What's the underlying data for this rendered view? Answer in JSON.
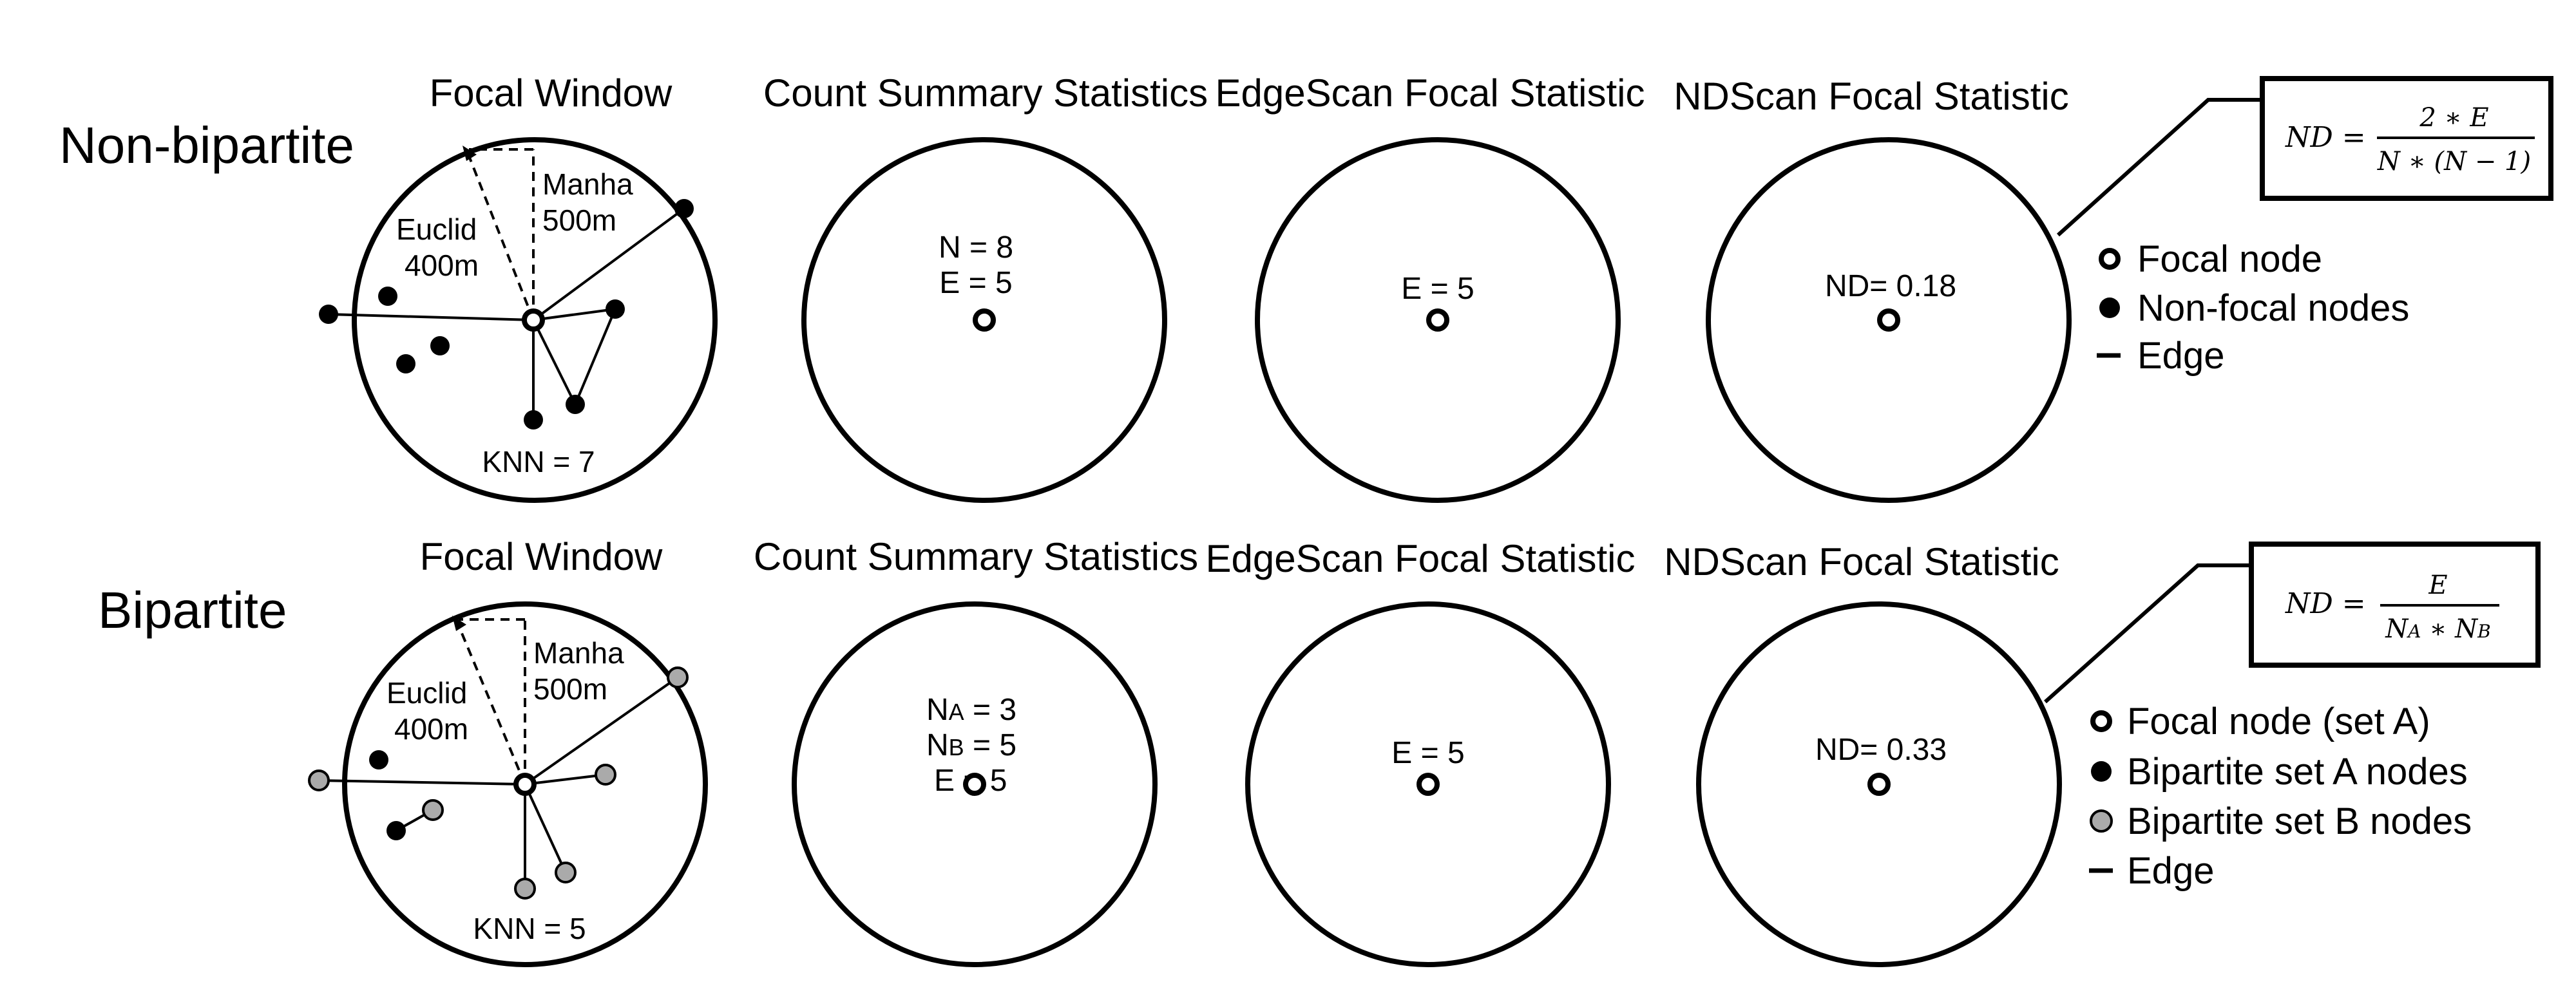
{
  "rows": {
    "nonbipartite": {
      "label": "Non-bipartite",
      "panel_titles": [
        "Focal Window",
        "Count Summary Statistics",
        "EdgeScan Focal Statistic",
        "NDScan Focal Statistic"
      ],
      "focal_window": {
        "manha": "Manha",
        "manha_dist": "500m",
        "euclid": "Euclid",
        "euclid_dist": "400m",
        "knn": "KNN = 7"
      },
      "count_lines": [
        "N = 8",
        "E = 5"
      ],
      "edgescan": "E = 5",
      "ndscan": "ND= 0.18",
      "formula": {
        "lhs": "ND =",
        "num": "2 ∗ E",
        "den": "N ∗ (N − 1)"
      },
      "legend": [
        "Focal node",
        "Non-focal nodes",
        "Edge"
      ]
    },
    "bipartite": {
      "label": "Bipartite",
      "panel_titles": [
        "Focal Window",
        "Count Summary Statistics",
        "EdgeScan Focal Statistic",
        "NDScan Focal Statistic"
      ],
      "focal_window": {
        "manha": "Manha",
        "manha_dist": "500m",
        "euclid": "Euclid",
        "euclid_dist": "400m",
        "knn": "KNN = 5"
      },
      "count_lines": [
        {
          "main": "N",
          "sub": "A",
          "rest": " = 3"
        },
        {
          "main": "N",
          "sub": "B",
          "rest": " = 5"
        },
        {
          "main": "E",
          "sub": "",
          "rest": " = 5"
        }
      ],
      "edgescan": "E = 5",
      "ndscan": "ND= 0.33",
      "formula": {
        "lhs": "ND =",
        "num": "E",
        "den_a": "N",
        "den_a_sub": "A",
        "den_op": " ∗ ",
        "den_b": "N",
        "den_b_sub": "B"
      },
      "legend": [
        "Focal node (set A)",
        "Bipartite set A nodes",
        "Bipartite set B nodes",
        "Edge"
      ]
    }
  }
}
